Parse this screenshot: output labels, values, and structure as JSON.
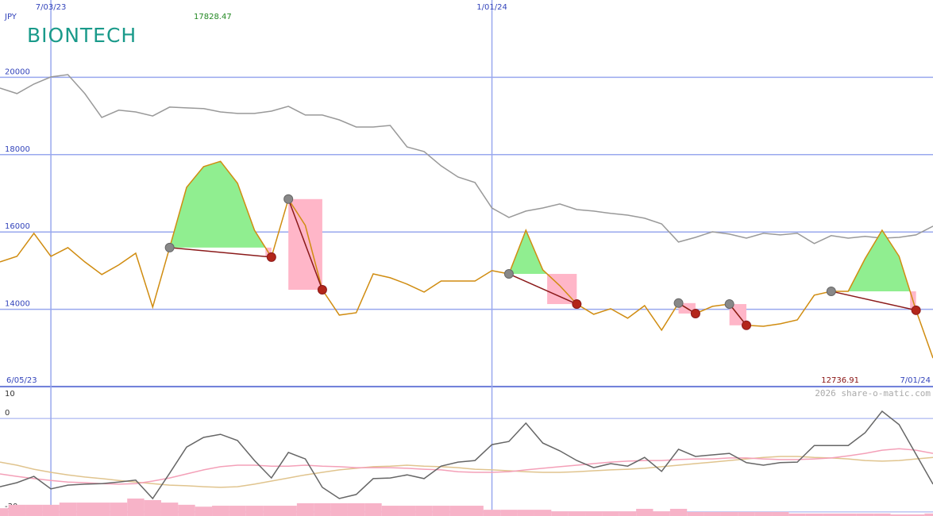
{
  "chart_data": [
    {
      "type": "line",
      "currency": "JPY",
      "logo": "BIONTECH",
      "watermark": "2026 share-o-matic.com",
      "start_label": "6/05/23",
      "end_label": "7/01/24",
      "high": 17828.47,
      "low": 12736.91,
      "categories": [
        null,
        null,
        null,
        "7/03/23",
        null,
        null,
        null,
        null,
        null,
        null,
        null,
        null,
        null,
        null,
        null,
        null,
        null,
        null,
        null,
        null,
        null,
        null,
        null,
        null,
        null,
        null,
        null,
        null,
        null,
        "1/01/24",
        null,
        null,
        null,
        null,
        null,
        null,
        null,
        null,
        null,
        null,
        null,
        null,
        null,
        null,
        null,
        null,
        null,
        null,
        null,
        null,
        null,
        null,
        null,
        null,
        null,
        null
      ],
      "series": [
        {
          "color": "#999999",
          "values": [
            19720,
            19580,
            19825,
            20010,
            20070,
            19580,
            18960,
            19150,
            19105,
            19000,
            19230,
            19210,
            19190,
            19105,
            19065,
            19065,
            19125,
            19250,
            19025,
            19025,
            18900,
            18715,
            18715,
            18755,
            18200,
            18080,
            17710,
            17420,
            17280,
            16620,
            16375,
            16540,
            16620,
            16725,
            16580,
            16540,
            16480,
            16435,
            16355,
            16210,
            15740,
            15860,
            16005,
            15945,
            15840,
            15965,
            15925,
            15965,
            15700,
            15905,
            15840,
            15885,
            15840,
            15860,
            15925,
            16150
          ]
        },
        {
          "color": "#d08c10",
          "values": [
            15225,
            15370,
            15965,
            15370,
            15595,
            15225,
            14900,
            15145,
            15450,
            14055,
            15595,
            17155,
            17690,
            17828.47,
            17260,
            16045,
            15350,
            16850,
            16170,
            14505,
            13850,
            13910,
            14915,
            14815,
            14650,
            14445,
            14730,
            14730,
            14730,
            15000,
            14915,
            16045,
            15020,
            14610,
            14135,
            13870,
            14015,
            13770,
            14095,
            13460,
            14160,
            13890,
            14075,
            14135,
            13585,
            13560,
            13625,
            13725,
            14365,
            14465,
            14465,
            15310,
            16045,
            15370,
            13975,
            12736.91
          ]
        }
      ],
      "signals": [
        {
          "start": 10,
          "end": 16
        },
        {
          "start": 17,
          "end": 19
        },
        {
          "start": 30,
          "end": 34
        },
        {
          "start": 40,
          "end": 41
        },
        {
          "start": 43,
          "end": 44
        },
        {
          "start": 49,
          "end": 54
        }
      ],
      "ylim": [
        12000,
        22000
      ],
      "yticks": [
        14000,
        16000,
        18000,
        20000
      ],
      "grid": true
    },
    {
      "type": "line",
      "ylim": [
        -31.3,
        10.2
      ],
      "yticks": [
        10,
        0,
        -30
      ],
      "grid": true,
      "series": [
        {
          "color": "#f7b3c8",
          "style": "bar",
          "values": [
            -28.8,
            -27.7,
            -27.7,
            -27.7,
            -27.0,
            -27.0,
            -27.0,
            -27.0,
            -25.7,
            -26.2,
            -27.0,
            -27.7,
            -28.3,
            -28.0,
            -28.0,
            -28.0,
            -28.0,
            -28.0,
            -27.2,
            -27.2,
            -27.2,
            -27.2,
            -27.2,
            -28.0,
            -28.0,
            -28.0,
            -28.0,
            -28.0,
            -28.0,
            -29.3,
            -29.3,
            -29.3,
            -29.3,
            -29.8,
            -29.8,
            -29.8,
            -29.8,
            -29.8,
            -29.0,
            -29.8,
            -29.0,
            -30.0,
            -30.0,
            -30.0,
            -30.0,
            -30.0,
            -30.0,
            -30.5,
            -30.5,
            -30.5,
            -30.5,
            -30.5,
            -30.5,
            -30.8,
            -30.8,
            -30.5
          ]
        },
        {
          "color": "#e0c48e",
          "values": [
            -14.0,
            -15.0,
            -16.3,
            -17.3,
            -18.1,
            -18.8,
            -19.3,
            -19.9,
            -20.4,
            -20.9,
            -21.4,
            -21.6,
            -21.9,
            -22.1,
            -21.9,
            -21.1,
            -20.1,
            -19.1,
            -18.1,
            -17.3,
            -16.5,
            -16.0,
            -15.5,
            -15.3,
            -15.0,
            -15.3,
            -15.5,
            -15.8,
            -16.3,
            -16.5,
            -16.8,
            -17.1,
            -17.3,
            -17.3,
            -17.1,
            -16.8,
            -16.5,
            -16.3,
            -16.0,
            -15.5,
            -15.0,
            -14.5,
            -14.0,
            -13.5,
            -13.0,
            -12.5,
            -12.2,
            -12.2,
            -12.5,
            -12.7,
            -13.0,
            -13.5,
            -13.7,
            -13.5,
            -13.0,
            -12.5
          ]
        },
        {
          "color": "#f4a0b8",
          "values": [
            -17.8,
            -18.6,
            -19.3,
            -19.9,
            -20.4,
            -20.6,
            -20.9,
            -21.1,
            -20.9,
            -20.1,
            -19.1,
            -17.8,
            -16.5,
            -15.5,
            -15.0,
            -15.0,
            -15.3,
            -15.3,
            -15.0,
            -15.3,
            -15.5,
            -15.8,
            -15.8,
            -15.8,
            -16.0,
            -16.3,
            -16.5,
            -17.1,
            -17.3,
            -17.3,
            -17.1,
            -16.5,
            -16.0,
            -15.5,
            -15.0,
            -14.5,
            -14.0,
            -13.7,
            -13.5,
            -13.5,
            -13.2,
            -13.0,
            -13.0,
            -12.7,
            -12.7,
            -13.0,
            -13.2,
            -13.2,
            -13.0,
            -12.7,
            -12.0,
            -11.2,
            -10.2,
            -9.7,
            -10.2,
            -11.2
          ]
        },
        {
          "color": "#666666",
          "values": [
            -21.9,
            -20.6,
            -18.6,
            -22.6,
            -21.4,
            -21.1,
            -20.9,
            -20.4,
            -19.8,
            -25.7,
            -17.6,
            -9.2,
            -6.1,
            -5.1,
            -7.1,
            -13.5,
            -19.1,
            -10.9,
            -13.0,
            -22.1,
            -25.7,
            -24.4,
            -19.3,
            -19.1,
            -18.1,
            -19.3,
            -15.3,
            -14.0,
            -13.5,
            -8.4,
            -7.4,
            -1.5,
            -7.9,
            -10.4,
            -13.5,
            -15.8,
            -14.5,
            -15.3,
            -12.5,
            -17.0,
            -9.9,
            -12.2,
            -11.7,
            -11.2,
            -14.2,
            -15.0,
            -14.2,
            -14.0,
            -8.7,
            -8.7,
            -8.7,
            -4.6,
            2.3,
            -2.0,
            -11.5,
            -21.1
          ]
        }
      ]
    }
  ]
}
